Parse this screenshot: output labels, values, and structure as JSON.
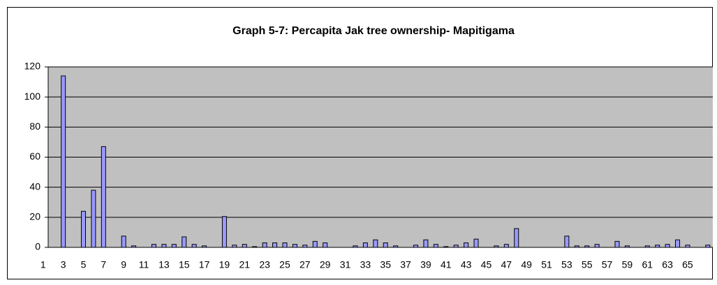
{
  "chart_data": {
    "type": "bar",
    "title": "Graph 5-7: Percapita Jak tree ownership- Mapitigama",
    "categories": [
      1,
      null,
      3,
      null,
      5,
      null,
      7,
      null,
      9,
      null,
      11,
      null,
      13,
      null,
      15,
      null,
      17,
      null,
      19,
      null,
      21,
      null,
      23,
      null,
      25,
      null,
      27,
      null,
      29,
      null,
      31,
      null,
      33,
      null,
      35,
      null,
      37,
      null,
      39,
      null,
      41,
      null,
      43,
      null,
      45,
      null,
      47,
      null,
      49,
      null,
      51,
      null,
      53,
      null,
      55,
      null,
      57,
      null,
      59,
      null,
      61,
      null,
      63,
      null,
      65,
      null
    ],
    "values": [
      0,
      114,
      0,
      24,
      38,
      67,
      0,
      7.5,
      1,
      0,
      2,
      2,
      2,
      7,
      2,
      1,
      0,
      20.5,
      1.5,
      2,
      0.5,
      3,
      3,
      3,
      2,
      1.5,
      4,
      3,
      0,
      0,
      1,
      3,
      5,
      3,
      1,
      0,
      1.5,
      5,
      2,
      0.5,
      1.5,
      3,
      5.5,
      0,
      1,
      2,
      12.5,
      0,
      0,
      0,
      0,
      7.5,
      1,
      1,
      2,
      0,
      4,
      1,
      0,
      1,
      1.5,
      2,
      5,
      1.5,
      0,
      1.5
    ],
    "color": "#9999ff",
    "ylim": [
      0,
      120
    ],
    "yticks": [
      0,
      20,
      40,
      60,
      80,
      100,
      120
    ],
    "grid": true
  }
}
